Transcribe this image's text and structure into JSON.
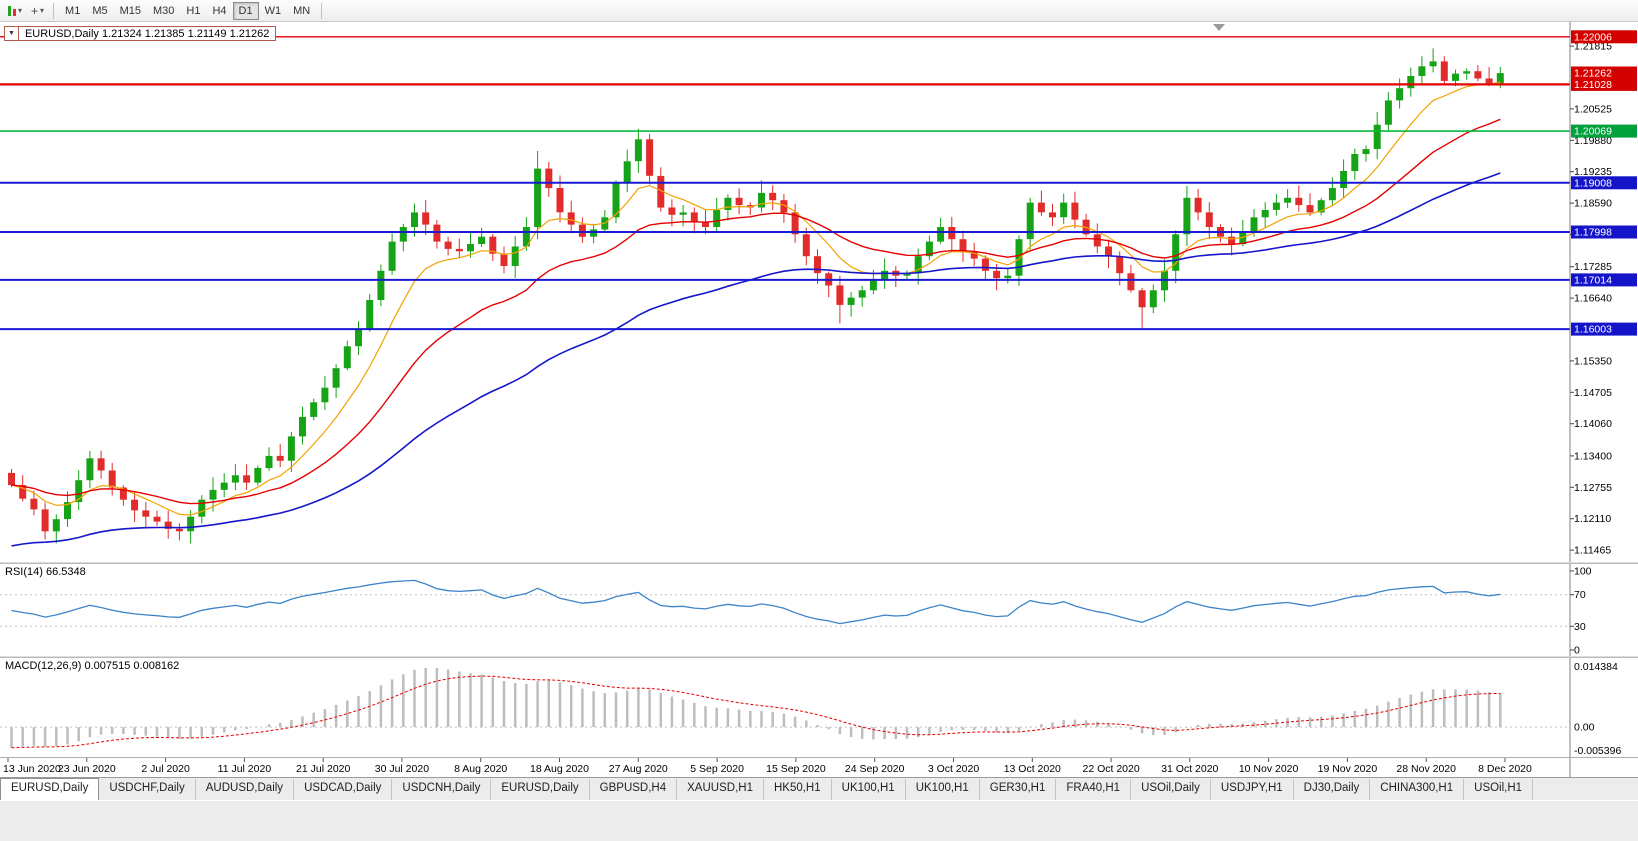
{
  "toolbar": {
    "chevron": "▾",
    "crosshair_glyph": "+",
    "timeframes": [
      "M1",
      "M5",
      "M15",
      "M30",
      "H1",
      "H4",
      "D1",
      "W1",
      "MN"
    ],
    "active_timeframe": "D1"
  },
  "chart_data": {
    "type": "candlestick",
    "symbol": "EURUSD",
    "period": "Daily",
    "title_arrow": "▼",
    "title": "EURUSD,Daily 1.21324 1.21385 1.21149 1.21262",
    "ohlc_header": {
      "open": "1.21324",
      "high": "1.21385",
      "low": "1.21149",
      "close": "1.21262"
    },
    "colors": {
      "up": "#17a317",
      "down": "#e22c2c",
      "ma_fast": "#f2a200",
      "ma_mid": "#e60000",
      "ma_slow": "#1616cc",
      "rsi": "#3d85c8",
      "macd_signal": "#e60000",
      "macd_hist": "#bdbdbd",
      "level_red": "#e60000",
      "level_green": "#00bc3c",
      "level_blue": "#1a1ad2",
      "badge_red": "#d40000",
      "badge_green": "#00a03c",
      "badge_blue": "#1414c8"
    },
    "price_range": {
      "top": 1.2231,
      "bottom": 1.1122
    },
    "first_open": 1.1305,
    "closes": [
      1.128,
      1.1252,
      1.123,
      1.1185,
      1.121,
      1.1245,
      1.129,
      1.1335,
      1.131,
      1.1275,
      1.125,
      1.1228,
      1.1215,
      1.1205,
      1.119,
      1.1185,
      1.1215,
      1.125,
      1.127,
      1.1285,
      1.13,
      1.1285,
      1.1315,
      1.134,
      1.133,
      1.138,
      1.142,
      1.145,
      1.148,
      1.152,
      1.1565,
      1.16,
      1.166,
      1.172,
      1.178,
      1.181,
      1.184,
      1.1815,
      1.178,
      1.1765,
      1.176,
      1.1775,
      1.179,
      1.1755,
      1.173,
      1.177,
      1.181,
      1.193,
      1.189,
      1.184,
      1.1815,
      1.179,
      1.1805,
      1.183,
      1.19,
      1.1945,
      1.199,
      1.1915,
      1.185,
      1.1835,
      1.184,
      1.182,
      1.181,
      1.1845,
      1.187,
      1.1855,
      1.185,
      1.188,
      1.1865,
      1.184,
      1.1795,
      1.175,
      1.1715,
      1.169,
      1.165,
      1.1665,
      1.168,
      1.17,
      1.172,
      1.171,
      1.1715,
      1.175,
      1.178,
      1.181,
      1.1785,
      1.176,
      1.1745,
      1.172,
      1.1705,
      1.171,
      1.1785,
      1.186,
      1.184,
      1.183,
      1.186,
      1.1825,
      1.1795,
      1.177,
      1.175,
      1.1715,
      1.168,
      1.1645,
      1.168,
      1.172,
      1.1795,
      1.187,
      1.184,
      1.181,
      1.179,
      1.1775,
      1.18,
      1.183,
      1.1845,
      1.186,
      1.187,
      1.1855,
      1.184,
      1.1865,
      1.189,
      1.1925,
      1.196,
      1.197,
      1.202,
      1.207,
      1.2095,
      1.212,
      1.214,
      1.215,
      1.211,
      1.2125,
      1.213,
      1.2115,
      1.2105,
      1.2126
    ],
    "wick_overrides": {
      "3": {
        "low": 1.1168
      },
      "47": {
        "high": 1.1966
      },
      "56": {
        "high": 1.2012
      },
      "74": {
        "low": 1.1612
      },
      "101": {
        "low": 1.1603
      },
      "127": {
        "high": 1.2177
      }
    },
    "moving_averages": [
      {
        "name": "ma-fast",
        "period": 8,
        "seed": null,
        "color_key": "ma_fast",
        "width": 1.2
      },
      {
        "name": "ma-mid",
        "period": 21,
        "seed": null,
        "color_key": "ma_mid",
        "width": 1.4
      },
      {
        "name": "ma-slow",
        "period": 50,
        "seed": 1.115,
        "color_key": "ma_slow",
        "width": 1.6
      }
    ],
    "levels": [
      {
        "price": 1.22006,
        "color_key": "level_red",
        "width": 1.3,
        "badge": "1.22006",
        "badge_key": "badge_red"
      },
      {
        "price": 1.21028,
        "color_key": "level_red",
        "width": 2.2,
        "badge": "1.21028",
        "badge_key": "badge_red"
      },
      {
        "price": 1.20069,
        "color_key": "level_green",
        "width": 1.6,
        "badge": "1.20069",
        "badge_key": "badge_green"
      },
      {
        "price": 1.19008,
        "color_key": "level_blue",
        "width": 2.0,
        "badge": "1.19008",
        "badge_key": "badge_blue"
      },
      {
        "price": 1.17998,
        "color_key": "level_blue",
        "width": 2.0,
        "badge": "1.17998",
        "badge_key": "badge_blue"
      },
      {
        "price": 1.17014,
        "color_key": "level_blue",
        "width": 2.0,
        "badge": "1.17014",
        "badge_key": "badge_blue"
      },
      {
        "price": 1.16003,
        "color_key": "level_blue",
        "width": 2.0,
        "badge": "1.16003",
        "badge_key": "badge_blue"
      }
    ],
    "current_price": {
      "label": "1.21262",
      "price": 1.21262,
      "badge_key": "badge_red"
    },
    "axis_labels": [
      "1.21815",
      "1.20525",
      "1.19880",
      "1.19235",
      "1.18590",
      "1.17945",
      "1.17285",
      "1.16640",
      "1.15350",
      "1.14705",
      "1.14060",
      "1.13400",
      "1.12755",
      "1.12110",
      "1.11465"
    ],
    "x_labels": [
      "13 Jun 2020",
      "23 Jun 2020",
      "2 Jul 2020",
      "11 Jul 2020",
      "21 Jul 2020",
      "30 Jul 2020",
      "8 Aug 2020",
      "18 Aug 2020",
      "27 Aug 2020",
      "5 Sep 2020",
      "15 Sep 2020",
      "24 Sep 2020",
      "3 Oct 2020",
      "13 Oct 2020",
      "22 Oct 2020",
      "31 Oct 2020",
      "10 Nov 2020",
      "19 Nov 2020",
      "28 Nov 2020",
      "8 Dec 2020"
    ],
    "rsi": {
      "label": "RSI(14) 66.5348",
      "period": 14,
      "value": "66.5348",
      "scale": [
        "100",
        "70",
        "30",
        "0"
      ],
      "guides": [
        70,
        30
      ]
    },
    "macd": {
      "label": "MACD(12,26,9) 0.007515 0.008162",
      "fast": 12,
      "slow": 26,
      "signal": 9,
      "macd_value": "0.007515",
      "signal_value": "0.008162",
      "scale_top": 0.014384,
      "scale_bottom": -0.005396,
      "top_label": "0.014384",
      "zero_label": "0.00",
      "bottom_label": "-0.005396"
    }
  },
  "tabs": {
    "items": [
      {
        "label": "EURUSD,Daily",
        "active": true
      },
      {
        "label": "USDCHF,Daily",
        "active": false
      },
      {
        "label": "AUDUSD,Daily",
        "active": false
      },
      {
        "label": "USDCAD,Daily",
        "active": false
      },
      {
        "label": "USDCNH,Daily",
        "active": false
      },
      {
        "label": "EURUSD,Daily",
        "active": false
      },
      {
        "label": "GBPUSD,H4",
        "active": false
      },
      {
        "label": "XAUUSD,H1",
        "active": false
      },
      {
        "label": "HK50,H1",
        "active": false
      },
      {
        "label": "UK100,H1",
        "active": false
      },
      {
        "label": "UK100,H1",
        "active": false
      },
      {
        "label": "GER30,H1",
        "active": false
      },
      {
        "label": "FRA40,H1",
        "active": false
      },
      {
        "label": "USOil,Daily",
        "active": false
      },
      {
        "label": "USDJPY,H1",
        "active": false
      },
      {
        "label": "DJ30,Daily",
        "active": false
      },
      {
        "label": "CHINA300,H1",
        "active": false
      },
      {
        "label": "USOil,H1",
        "active": false
      }
    ]
  }
}
